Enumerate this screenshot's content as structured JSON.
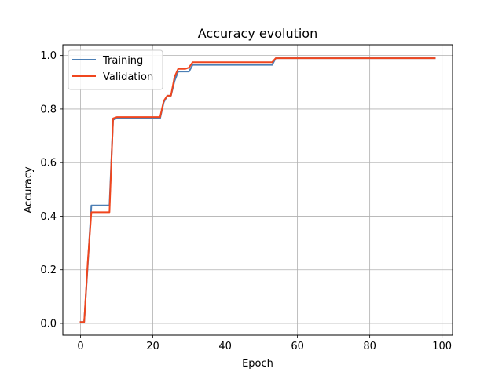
{
  "chart_data": {
    "type": "line",
    "title": "Accuracy evolution",
    "xlabel": "Epoch",
    "ylabel": "Accuracy",
    "xlim": [
      -4.9,
      102.9
    ],
    "ylim": [
      -0.044,
      1.04
    ],
    "xticks": [
      0,
      20,
      40,
      60,
      80,
      100
    ],
    "xtick_labels": [
      "0",
      "20",
      "40",
      "60",
      "80",
      "100"
    ],
    "yticks": [
      0.0,
      0.2,
      0.4,
      0.6,
      0.8,
      1.0
    ],
    "ytick_labels": [
      "0.0",
      "0.2",
      "0.4",
      "0.6",
      "0.8",
      "1.0"
    ],
    "grid": true,
    "legend_position": "top-left",
    "series": [
      {
        "name": "Training",
        "color": "#4c7fb5",
        "x": [
          0,
          1,
          2,
          3,
          4,
          5,
          6,
          7,
          8,
          9,
          10,
          11,
          12,
          13,
          14,
          15,
          16,
          17,
          18,
          19,
          20,
          21,
          22,
          23,
          24,
          25,
          26,
          27,
          28,
          29,
          30,
          31,
          32,
          33,
          34,
          35,
          36,
          37,
          38,
          39,
          40,
          41,
          42,
          43,
          44,
          45,
          46,
          47,
          48,
          49,
          50,
          51,
          52,
          53,
          54,
          55,
          56,
          57,
          58,
          59,
          60,
          61,
          62,
          63,
          64,
          65,
          66,
          67,
          68,
          69,
          70,
          71,
          72,
          73,
          74,
          75,
          76,
          77,
          78,
          79,
          80,
          81,
          82,
          83,
          84,
          85,
          86,
          87,
          88,
          89,
          90,
          91,
          92,
          93,
          94,
          95,
          96,
          97,
          98
        ],
        "y": [
          0.005,
          0.005,
          0.22,
          0.44,
          0.44,
          0.44,
          0.44,
          0.44,
          0.44,
          0.76,
          0.765,
          0.765,
          0.765,
          0.765,
          0.765,
          0.765,
          0.765,
          0.765,
          0.765,
          0.765,
          0.765,
          0.765,
          0.765,
          0.825,
          0.85,
          0.85,
          0.905,
          0.94,
          0.94,
          0.94,
          0.94,
          0.965,
          0.965,
          0.965,
          0.965,
          0.965,
          0.965,
          0.965,
          0.965,
          0.965,
          0.965,
          0.965,
          0.965,
          0.965,
          0.965,
          0.965,
          0.965,
          0.965,
          0.965,
          0.965,
          0.965,
          0.965,
          0.965,
          0.965,
          0.99,
          0.99,
          0.99,
          0.99,
          0.99,
          0.99,
          0.99,
          0.99,
          0.99,
          0.99,
          0.99,
          0.99,
          0.99,
          0.99,
          0.99,
          0.99,
          0.99,
          0.99,
          0.99,
          0.99,
          0.99,
          0.99,
          0.99,
          0.99,
          0.99,
          0.99,
          0.99,
          0.99,
          0.99,
          0.99,
          0.99,
          0.99,
          0.99,
          0.99,
          0.99,
          0.99,
          0.99,
          0.99,
          0.99,
          0.99,
          0.99,
          0.99,
          0.99,
          0.99,
          0.99
        ]
      },
      {
        "name": "Validation",
        "color": "#f0461e",
        "x": [
          0,
          1,
          2,
          3,
          4,
          5,
          6,
          7,
          8,
          9,
          10,
          11,
          12,
          13,
          14,
          15,
          16,
          17,
          18,
          19,
          20,
          21,
          22,
          23,
          24,
          25,
          26,
          27,
          28,
          29,
          30,
          31,
          32,
          33,
          34,
          35,
          36,
          37,
          38,
          39,
          40,
          41,
          42,
          43,
          44,
          45,
          46,
          47,
          48,
          49,
          50,
          51,
          52,
          53,
          54,
          55,
          56,
          57,
          58,
          59,
          60,
          61,
          62,
          63,
          64,
          65,
          66,
          67,
          68,
          69,
          70,
          71,
          72,
          73,
          74,
          75,
          76,
          77,
          78,
          79,
          80,
          81,
          82,
          83,
          84,
          85,
          86,
          87,
          88,
          89,
          90,
          91,
          92,
          93,
          94,
          95,
          96,
          97,
          98
        ],
        "y": [
          0.005,
          0.005,
          0.23,
          0.415,
          0.415,
          0.415,
          0.415,
          0.415,
          0.415,
          0.765,
          0.77,
          0.77,
          0.77,
          0.77,
          0.77,
          0.77,
          0.77,
          0.77,
          0.77,
          0.77,
          0.77,
          0.77,
          0.77,
          0.83,
          0.85,
          0.85,
          0.92,
          0.95,
          0.95,
          0.95,
          0.955,
          0.975,
          0.975,
          0.975,
          0.975,
          0.975,
          0.975,
          0.975,
          0.975,
          0.975,
          0.975,
          0.975,
          0.975,
          0.975,
          0.975,
          0.975,
          0.975,
          0.975,
          0.975,
          0.975,
          0.975,
          0.975,
          0.975,
          0.975,
          0.99,
          0.99,
          0.99,
          0.99,
          0.99,
          0.99,
          0.99,
          0.99,
          0.99,
          0.99,
          0.99,
          0.99,
          0.99,
          0.99,
          0.99,
          0.99,
          0.99,
          0.99,
          0.99,
          0.99,
          0.99,
          0.99,
          0.99,
          0.99,
          0.99,
          0.99,
          0.99,
          0.99,
          0.99,
          0.99,
          0.99,
          0.99,
          0.99,
          0.99,
          0.99,
          0.99,
          0.99,
          0.99,
          0.99,
          0.99,
          0.99,
          0.99,
          0.99,
          0.99,
          0.99
        ]
      }
    ]
  }
}
